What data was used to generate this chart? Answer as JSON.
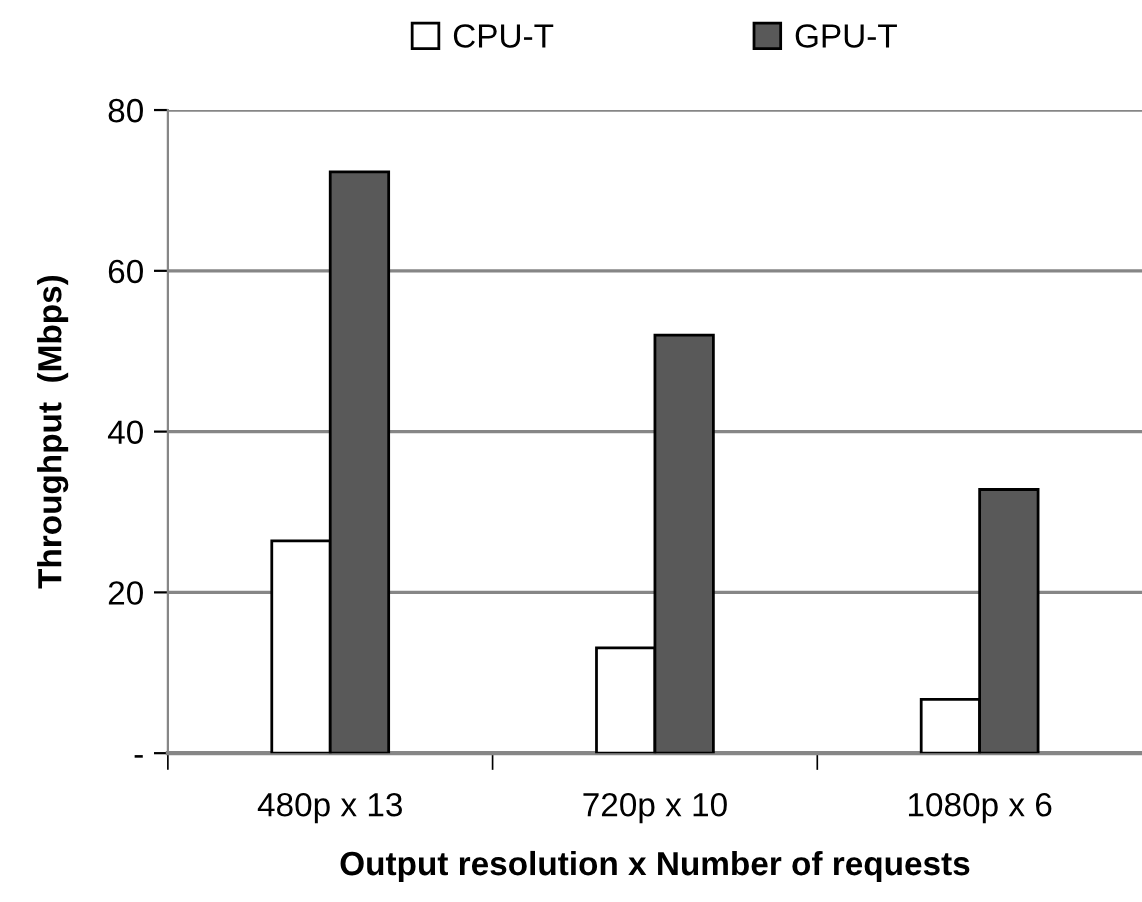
{
  "chart_data": {
    "type": "bar",
    "xlabel": "Output resolution x Number of requests",
    "ylabel": "Throughput  (Mbps)",
    "categories": [
      "480p x 13",
      "720p x 10",
      "1080p x 6"
    ],
    "series": [
      {
        "name": "CPU-T",
        "color": "#ffffff",
        "values": [
          26.4,
          13.1,
          6.7
        ]
      },
      {
        "name": "GPU-T",
        "color": "#595959",
        "values": [
          72.3,
          52,
          32.8
        ]
      }
    ],
    "ylim": [
      0,
      80
    ],
    "yticks": [
      {
        "value": 0,
        "label": "-"
      },
      20,
      40,
      60,
      80
    ],
    "grid": "y",
    "legend": "top"
  }
}
